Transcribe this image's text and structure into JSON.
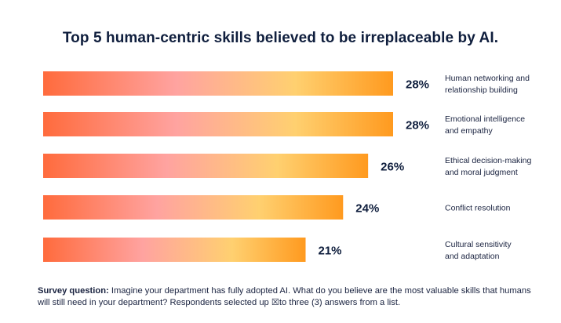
{
  "chart_data": {
    "type": "bar",
    "orientation": "horizontal",
    "title": "Top 5 human-centric skills believed to be irreplaceable by AI.",
    "categories": [
      [
        "Human networking and",
        "relationship building"
      ],
      [
        "Emotional intelligence",
        "and empathy"
      ],
      [
        "Ethical decision-making",
        "and moral judgment"
      ],
      [
        "Conflict resolution"
      ],
      [
        "Cultural sensitivity",
        "and adaptation"
      ]
    ],
    "values": [
      28,
      28,
      26,
      24,
      21
    ],
    "value_labels": [
      "28%",
      "28%",
      "26%",
      "24%",
      "21%"
    ],
    "unit": "%",
    "xlim": [
      0,
      28
    ],
    "colors": {
      "start": "#ff6b3d",
      "mid": "#ffa0a0",
      "light": "#ffd36b",
      "end": "#ff9a1f"
    }
  },
  "footnote": {
    "label": "Survey question:",
    "text": "Imagine your department has fully adopted AI. What do you believe are the most valuable skills that humans will still need in your department? Respondents selected up ☒to three (3) answers from a list."
  }
}
